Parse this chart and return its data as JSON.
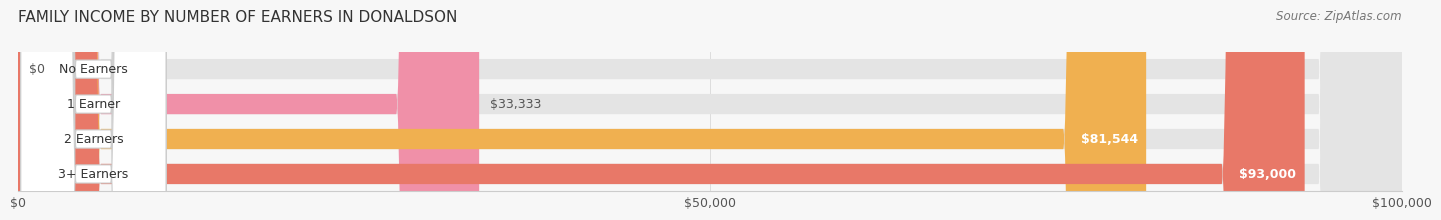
{
  "title": "FAMILY INCOME BY NUMBER OF EARNERS IN DONALDSON",
  "source": "Source: ZipAtlas.com",
  "categories": [
    "No Earners",
    "1 Earner",
    "2 Earners",
    "3+ Earners"
  ],
  "values": [
    0,
    33333,
    81544,
    93000
  ],
  "bar_colors": [
    "#a8a8d8",
    "#f090a8",
    "#f0b050",
    "#e87868"
  ],
  "value_labels": [
    "$0",
    "$33,333",
    "$81,544",
    "$93,000"
  ],
  "value_label_inside": [
    false,
    false,
    true,
    true
  ],
  "xlim": [
    0,
    100000
  ],
  "xticks": [
    0,
    50000,
    100000
  ],
  "xtick_labels": [
    "$0",
    "$50,000",
    "$100,000"
  ],
  "title_fontsize": 11,
  "source_fontsize": 8.5,
  "label_fontsize": 9,
  "value_fontsize": 9,
  "background_color": "#f7f7f7"
}
